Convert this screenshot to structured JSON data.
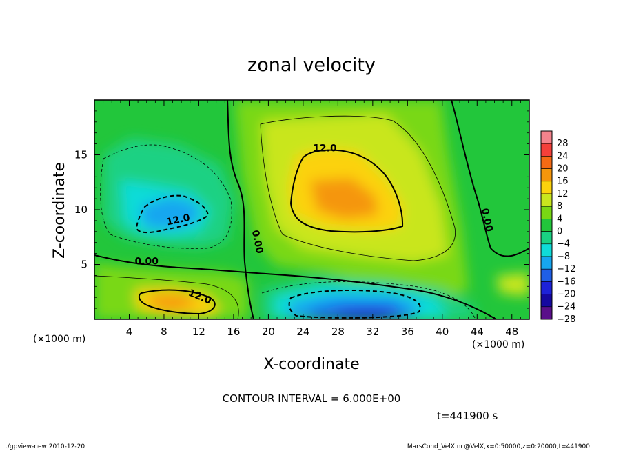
{
  "chart_data": {
    "type": "heatmap",
    "title": "zonal velocity",
    "xlabel": "X-coordinate",
    "ylabel": "Z-coordinate",
    "x_unit": "(×1000 m)",
    "y_unit": "(×1000 m)",
    "xlim": [
      0,
      50
    ],
    "ylim": [
      0,
      20
    ],
    "x_ticks": [
      4,
      8,
      12,
      16,
      20,
      24,
      28,
      32,
      36,
      40,
      44,
      48
    ],
    "y_ticks": [
      5,
      10,
      15
    ],
    "colorbar": {
      "levels": [
        28,
        24,
        20,
        16,
        12,
        8,
        4,
        0,
        -4,
        -8,
        -12,
        -16,
        -20,
        -24,
        -28
      ],
      "labels": [
        "28",
        "24",
        "20",
        "16",
        "12",
        "8",
        "4",
        "0",
        "−4",
        "−8",
        "−12",
        "−16",
        "−20",
        "−24",
        "−28"
      ],
      "colors": [
        "#f5838c",
        "#f4403a",
        "#f46a14",
        "#f5960b",
        "#fcd20c",
        "#c9e61e",
        "#79d814",
        "#22c63b",
        "#1ad183",
        "#0fdcd8",
        "#16a6f0",
        "#1f5fe6",
        "#1d22d8",
        "#1508a0",
        "#5a0f8a"
      ]
    },
    "contour_labels": [
      {
        "text": "12.0",
        "x": 26.5,
        "z": 15.3
      },
      {
        "text": "12.0",
        "x": 9.7,
        "z": 8.8
      },
      {
        "text": "0.00",
        "x": 6.0,
        "z": 5.0
      },
      {
        "text": "0.00",
        "x": 18.4,
        "z": 7.0
      },
      {
        "text": "0.00",
        "x": 44.8,
        "z": 9.0
      },
      {
        "text": "12.0",
        "x": 12.0,
        "z": 1.8
      }
    ],
    "features": [
      {
        "name": "positive-core-upper",
        "x": 27.0,
        "z": 11.0,
        "value": 14
      },
      {
        "name": "positive-core-lower-left",
        "x": 9.0,
        "z": 1.7,
        "value": 14
      },
      {
        "name": "negative-core-upper-left",
        "x": 9.5,
        "z": 9.8,
        "value": -14
      },
      {
        "name": "negative-core-bottom",
        "x": 29.0,
        "z": 1.0,
        "value": -22
      }
    ]
  },
  "annotations": {
    "contour_interval": "CONTOUR INTERVAL = 6.000E+00",
    "time": "t=441900 s",
    "footer_left": "./gpview-new  2010-12-20",
    "footer_right": "MarsCond_VelX.nc@VelX,x=0:50000,z=0:20000,t=441900"
  }
}
